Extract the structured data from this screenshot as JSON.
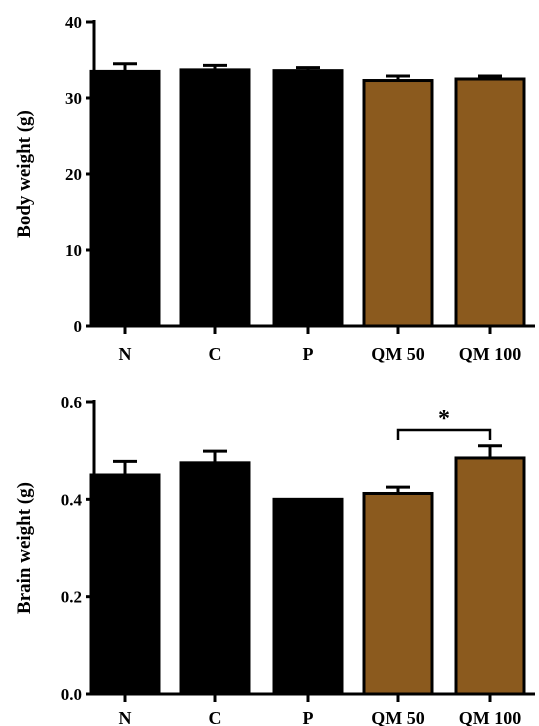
{
  "chart_data": [
    {
      "type": "bar",
      "categories": [
        "N",
        "C",
        "P",
        "QM 50",
        "QM 100"
      ],
      "values": [
        33.5,
        33.7,
        33.6,
        32.3,
        32.5
      ],
      "error": [
        1.0,
        0.6,
        0.4,
        0.6,
        0.4
      ],
      "colors": [
        "#000000",
        "#000000",
        "#000000",
        "#8b5a1e",
        "#8b5a1e"
      ],
      "ylabel": "Body weight (g)",
      "xlabel": "",
      "ylim": [
        0,
        40
      ],
      "yticks": [
        0,
        10,
        20,
        30,
        40
      ],
      "ytick_labels": [
        "0",
        "10",
        "20",
        "30",
        "40"
      ],
      "grid": false,
      "annotations": []
    },
    {
      "type": "bar",
      "categories": [
        "N",
        "C",
        "P",
        "QM 50",
        "QM 100"
      ],
      "values": [
        0.45,
        0.475,
        0.4,
        0.412,
        0.485
      ],
      "error": [
        0.028,
        0.024,
        0.0,
        0.013,
        0.025
      ],
      "colors": [
        "#000000",
        "#000000",
        "#000000",
        "#8b5a1e",
        "#8b5a1e"
      ],
      "ylabel": "Brain weight (g)",
      "xlabel": "",
      "ylim": [
        0,
        0.6
      ],
      "yticks": [
        0,
        0.2,
        0.4,
        0.6
      ],
      "ytick_labels": [
        "0.0",
        "0.2",
        "0.4",
        "0.6"
      ],
      "grid": false,
      "annotations": [
        {
          "type": "significance",
          "from": "QM 50",
          "to": "QM 100",
          "label": "*"
        }
      ]
    }
  ]
}
